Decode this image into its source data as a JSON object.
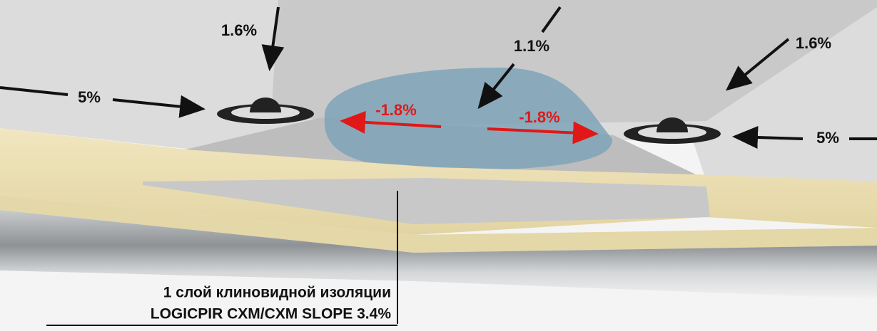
{
  "slope_labels": [
    "1.6%",
    "5%",
    "-1.8%",
    "1.1%",
    "-1.8%",
    "1.6%",
    "5%"
  ],
  "caption": {
    "line1": "1 слой клиновидной изоляции",
    "line2": "LOGICPIR CXM/CXM SLOPE 3.4%"
  }
}
